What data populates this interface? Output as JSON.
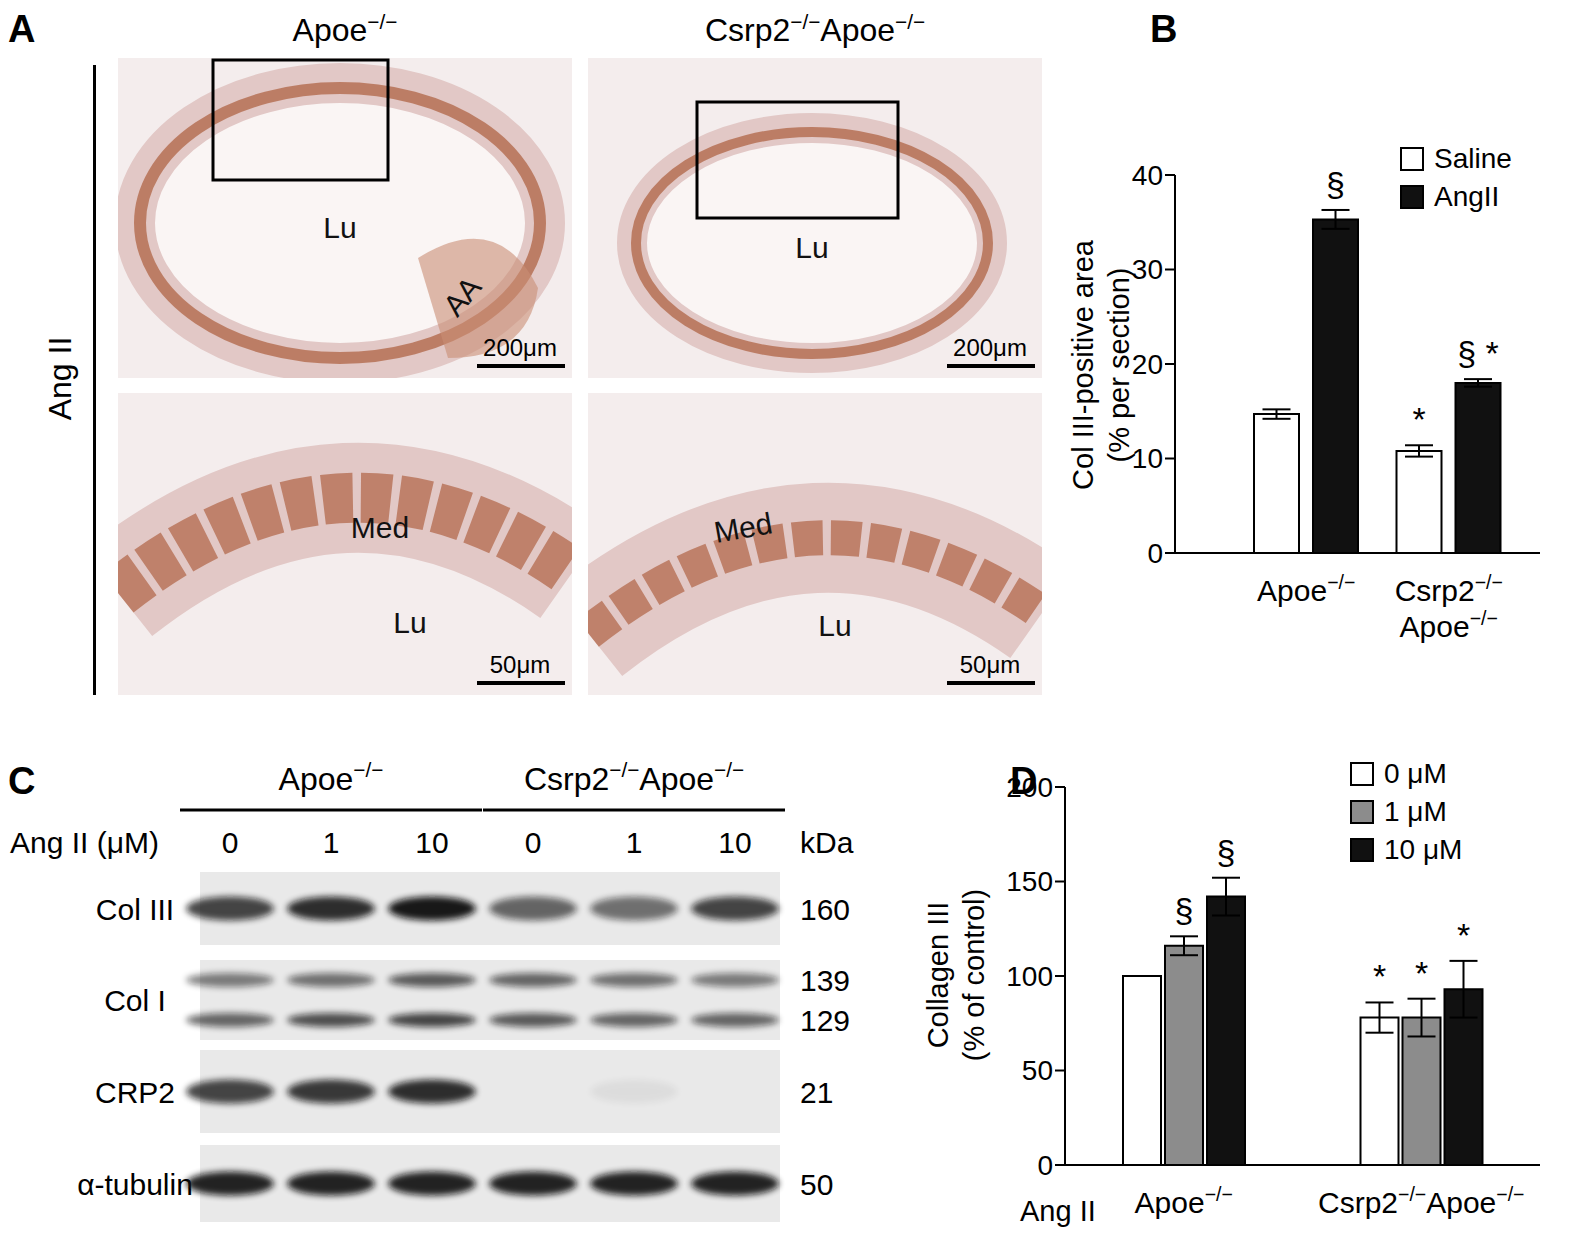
{
  "chart_data": [
    {
      "panel_label": "B",
      "type": "bar",
      "ylabel": [
        "Col III-positive area",
        "(% per section)"
      ],
      "categories": [
        "Apoe−/−",
        "Csrp2−/− Apoe−/−"
      ],
      "ylim": [
        0,
        40
      ],
      "yticks": [
        0,
        10,
        20,
        30,
        40
      ],
      "legend": "upper right",
      "series": [
        {
          "name": "Saline",
          "color": "#ffffff",
          "values": [
            14.7,
            10.8
          ],
          "errors": [
            0.5,
            0.6
          ],
          "annotations": [
            null,
            "*"
          ]
        },
        {
          "name": "AngII",
          "color": "#111111",
          "values": [
            35.3,
            18.0
          ],
          "errors": [
            1.0,
            0.4
          ],
          "annotations": [
            "§",
            "§ *"
          ]
        }
      ]
    },
    {
      "panel_label": "D",
      "type": "bar",
      "ylabel": [
        "Collagen III",
        "(% of control)"
      ],
      "xlabel": "Ang II",
      "categories": [
        "Apoe−/−",
        "Csrp2−/−Apoe−/−"
      ],
      "ylim": [
        0,
        200
      ],
      "yticks": [
        0,
        50,
        100,
        150,
        200
      ],
      "legend": "upper right",
      "series": [
        {
          "name": "0 μM",
          "color": "#ffffff",
          "values": [
            100,
            78
          ],
          "errors": [
            0,
            8
          ],
          "annotations": [
            null,
            "*"
          ]
        },
        {
          "name": "1 μM",
          "color": "#8c8c8c",
          "values": [
            116,
            78
          ],
          "errors": [
            5,
            10
          ],
          "annotations": [
            "§",
            "*"
          ]
        },
        {
          "name": "10 μM",
          "color": "#111111",
          "values": [
            142,
            93
          ],
          "errors": [
            10,
            15
          ],
          "annotations": [
            "§",
            "*"
          ]
        }
      ]
    }
  ],
  "panel_A": {
    "panel_label": "A",
    "row_label": "Ang II",
    "columns": [
      "Apoe−/−",
      "Csrp2−/−Apoe−/−"
    ],
    "images": [
      {
        "labels": [
          "Lu",
          "AA"
        ],
        "scale_bar": "200μm"
      },
      {
        "labels": [
          "Lu"
        ],
        "scale_bar": "200μm"
      },
      {
        "labels": [
          "Med",
          "Lu"
        ],
        "scale_bar": "50μm"
      },
      {
        "labels": [
          "Med",
          "Lu"
        ],
        "scale_bar": "50μm"
      }
    ]
  },
  "panel_C": {
    "panel_label": "C",
    "groups": [
      "Apoe−/−",
      "Csrp2−/−Apoe−/−"
    ],
    "lane_label": "Ang II (μM)",
    "lanes": [
      0,
      1,
      10,
      0,
      1,
      10
    ],
    "unit": "kDa",
    "rows": [
      {
        "name": "Col III",
        "bands": [
          {
            "kDa": 160,
            "intensity": [
              0.75,
              0.85,
              0.95,
              0.6,
              0.55,
              0.75
            ]
          }
        ]
      },
      {
        "name": "Col I",
        "bands": [
          {
            "kDa": 139,
            "intensity": [
              0.5,
              0.55,
              0.65,
              0.6,
              0.55,
              0.5
            ]
          },
          {
            "kDa": 129,
            "intensity": [
              0.6,
              0.7,
              0.75,
              0.65,
              0.6,
              0.6
            ]
          }
        ]
      },
      {
        "name": "CRP2",
        "bands": [
          {
            "kDa": 21,
            "intensity": [
              0.75,
              0.8,
              0.85,
              0,
              0.05,
              0
            ]
          }
        ]
      },
      {
        "name": "α-tubulin",
        "bands": [
          {
            "kDa": 50,
            "intensity": [
              0.9,
              0.9,
              0.9,
              0.9,
              0.9,
              0.9
            ]
          }
        ]
      }
    ]
  }
}
